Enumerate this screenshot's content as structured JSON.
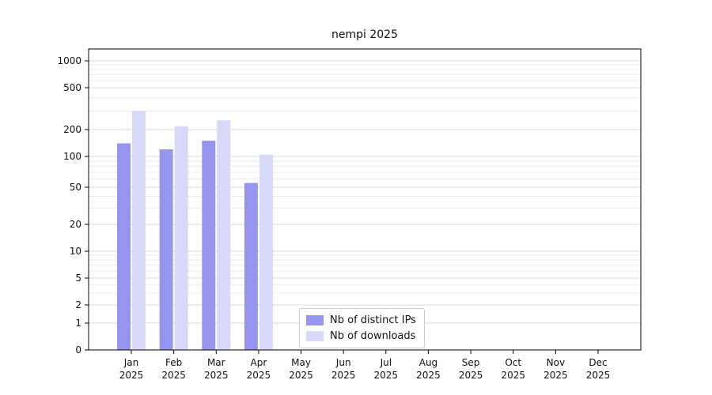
{
  "chart_data": {
    "type": "bar",
    "title": "nempi 2025",
    "categories": [
      "Jan",
      "Feb",
      "Mar",
      "Apr",
      "May",
      "Jun",
      "Jul",
      "Aug",
      "Sep",
      "Oct",
      "Nov",
      "Dec"
    ],
    "year": "2025",
    "series": [
      {
        "name": "Nb of distinct IPs",
        "color": "#9595ee",
        "values": [
          140,
          120,
          150,
          55,
          0,
          0,
          0,
          0,
          0,
          0,
          0,
          0
        ]
      },
      {
        "name": "Nb of downloads",
        "color": "#d8d8f8",
        "values": [
          300,
          215,
          245,
          105,
          0,
          0,
          0,
          0,
          0,
          0,
          0,
          0
        ]
      }
    ],
    "yticks": [
      0,
      1,
      2,
      5,
      10,
      20,
      50,
      100,
      200,
      500,
      1000
    ],
    "yaxis_scale": "symlog",
    "grid": true,
    "legend_position": "lower center",
    "colors": {
      "axis": "#000000",
      "grid_major": "#d9d9d9",
      "grid_minor": "#ececec",
      "tick_text": "#111111"
    }
  }
}
